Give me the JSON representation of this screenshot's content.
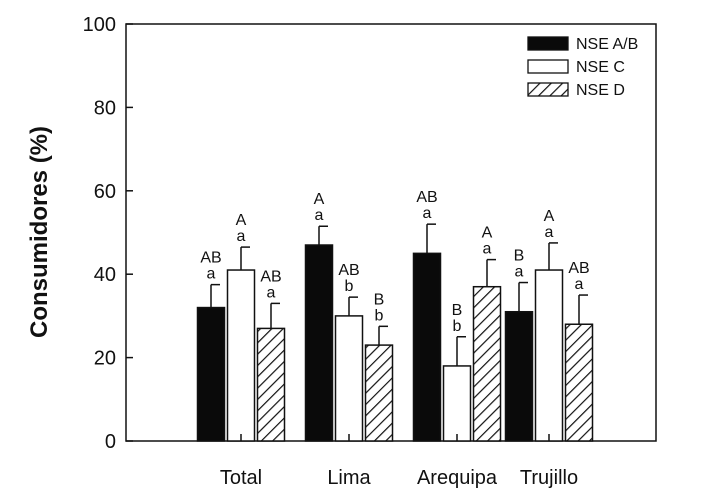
{
  "chart_data": {
    "type": "bar",
    "title": "",
    "xlabel": "",
    "ylabel": "Consumidores (%)",
    "ylim": [
      0,
      100
    ],
    "yticks": [
      "0",
      "20",
      "40",
      "60",
      "80",
      "100"
    ],
    "grid": false,
    "legend_position": "top-right",
    "categories": [
      "Total",
      "Lima",
      "Arequipa",
      "Trujillo"
    ],
    "series": [
      {
        "name": "NSE A/B",
        "pattern": "solid-black",
        "values": [
          32,
          47,
          45,
          31
        ],
        "errors": [
          5.5,
          4.5,
          7,
          7
        ],
        "labels": [
          [
            "AB",
            "a"
          ],
          [
            "A",
            "a"
          ],
          [
            "AB",
            "a"
          ],
          [
            "B",
            "a"
          ]
        ]
      },
      {
        "name": "NSE C",
        "pattern": "white",
        "values": [
          41,
          30,
          18,
          41
        ],
        "errors": [
          5.5,
          4.5,
          7,
          6.5
        ],
        "labels": [
          [
            "A",
            "a"
          ],
          [
            "AB",
            "b"
          ],
          [
            "B",
            "b"
          ],
          [
            "A",
            "a"
          ]
        ]
      },
      {
        "name": "NSE D",
        "pattern": "hatched",
        "values": [
          27,
          23,
          37,
          28
        ],
        "errors": [
          6,
          4.5,
          6.5,
          7
        ],
        "labels": [
          [
            "AB",
            "a"
          ],
          [
            "B",
            "b"
          ],
          [
            "A",
            "a"
          ],
          [
            "AB",
            "a"
          ]
        ]
      }
    ],
    "colors": {
      "fill_black": "#0a0a0a",
      "fill_white": "#ffffff",
      "stroke": "#111111"
    }
  }
}
